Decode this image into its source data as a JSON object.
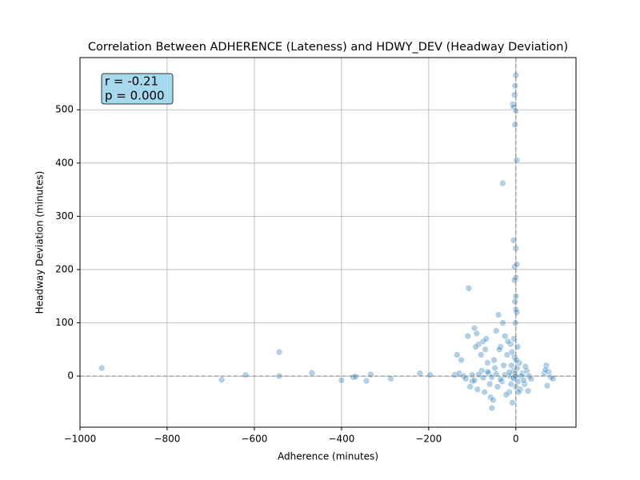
{
  "chart_data": {
    "type": "scatter",
    "title": "Correlation Between ADHERENCE (Lateness) and HDWY_DEV (Headway Deviation)",
    "xlabel": "Adherence (minutes)",
    "ylabel": "Headway Deviation (minutes)",
    "annotation": [
      "r = -0.21",
      "p = 0.000"
    ],
    "color": "#1f77b4",
    "grid": true,
    "hline": 0,
    "vline": 0,
    "xlim": [
      -1000,
      138
    ],
    "ylim": [
      -96,
      598
    ],
    "xticks": [
      {
        "value": -1000,
        "label": "−1000"
      },
      {
        "value": -800,
        "label": "−800"
      },
      {
        "value": -600,
        "label": "−600"
      },
      {
        "value": -400,
        "label": "−400"
      },
      {
        "value": -200,
        "label": "−200"
      },
      0
    ],
    "yticks": [
      0,
      100,
      200,
      300,
      400,
      500
    ],
    "x": [
      -950,
      -675,
      -620,
      -543,
      -543,
      -468,
      -400,
      -373,
      -368,
      -343,
      -333,
      -287,
      -220,
      -197,
      -108,
      -30,
      -5,
      0,
      -2,
      -3,
      -7,
      -5,
      0,
      -2,
      2,
      0,
      -3,
      2,
      0,
      -3,
      0,
      -2,
      0,
      2,
      -1,
      -140,
      -130,
      -120,
      -115,
      -100,
      -95,
      -90,
      -85,
      -80,
      -75,
      -70,
      -65,
      -60,
      -55,
      -50,
      -45,
      -40,
      -35,
      -30,
      -25,
      -20,
      -15,
      -12,
      -10,
      -8,
      -5,
      -3,
      0,
      3,
      5,
      8,
      10,
      15,
      20,
      25,
      30,
      35,
      -135,
      -125,
      -110,
      -105,
      -92,
      -88,
      -78,
      -72,
      -68,
      -62,
      -58,
      -52,
      -48,
      -42,
      -38,
      -32,
      -28,
      -22,
      -18,
      -14,
      -11,
      -9,
      -6,
      -4,
      -2,
      1,
      4,
      6,
      12,
      18,
      22,
      28,
      65,
      70,
      72,
      75,
      80,
      85,
      68,
      -100,
      -95,
      -85,
      -75,
      -65,
      -55,
      -45,
      -35,
      -25,
      -15,
      -5,
      -1
    ],
    "y": [
      15,
      -7,
      2,
      45,
      0,
      6,
      -8,
      -2,
      -1,
      -9,
      3,
      -5,
      5,
      2,
      165,
      362,
      255,
      565,
      545,
      528,
      510,
      505,
      498,
      472,
      405,
      240,
      205,
      210,
      185,
      180,
      150,
      140,
      125,
      120,
      100,
      2,
      5,
      0,
      -5,
      -10,
      90,
      80,
      60,
      40,
      65,
      50,
      25,
      -15,
      -60,
      30,
      85,
      115,
      55,
      100,
      75,
      40,
      -30,
      60,
      20,
      -50,
      10,
      35,
      -20,
      15,
      -10,
      25,
      -25,
      5,
      -15,
      10,
      0,
      -5,
      40,
      30,
      75,
      -20,
      55,
      -25,
      10,
      -30,
      70,
      5,
      -40,
      -45,
      15,
      -20,
      50,
      -10,
      20,
      -35,
      65,
      0,
      -15,
      45,
      -5,
      70,
      5,
      30,
      55,
      -30,
      0,
      -8,
      18,
      -28,
      5,
      20,
      -18,
      8,
      -2,
      -5,
      12,
      2,
      -8,
      3,
      -3,
      8,
      -2,
      4,
      -6,
      2,
      7,
      -3,
      0
    ]
  }
}
